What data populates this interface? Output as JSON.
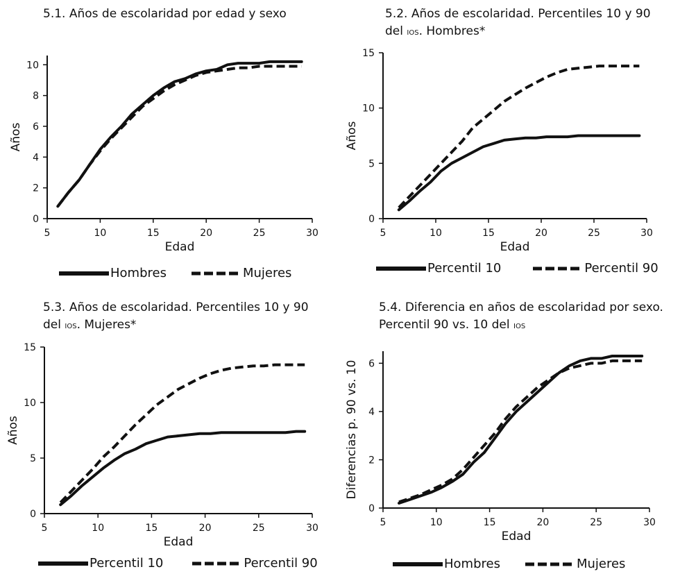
{
  "chart_data": [
    {
      "id": "p1",
      "type": "line",
      "title_main": "5.1. Años de escolaridad por edad y sexo",
      "title_sc": "",
      "title_tail": "",
      "title_line2": "",
      "xlabel": "Edad",
      "ylabel": "Años",
      "xlim": [
        5,
        30
      ],
      "ylim": [
        0,
        10.6
      ],
      "xticks": [
        5,
        10,
        15,
        20,
        25,
        30
      ],
      "yticks": [
        0,
        2,
        4,
        6,
        8,
        10
      ],
      "series": [
        {
          "name": "Hombres",
          "style": "solid",
          "x": [
            6,
            7,
            8,
            9,
            10,
            11,
            12,
            13,
            14,
            15,
            16,
            17,
            18,
            19,
            20,
            21,
            22,
            23,
            24,
            25,
            26,
            27,
            28,
            29
          ],
          "y": [
            0.8,
            1.7,
            2.5,
            3.5,
            4.5,
            5.3,
            6.0,
            6.8,
            7.4,
            8.0,
            8.5,
            8.9,
            9.1,
            9.4,
            9.6,
            9.7,
            10.0,
            10.1,
            10.1,
            10.1,
            10.2,
            10.2,
            10.2,
            10.2
          ]
        },
        {
          "name": "Mujeres",
          "style": "dashed",
          "x": [
            6,
            7,
            8,
            9,
            10,
            11,
            12,
            13,
            14,
            15,
            16,
            17,
            18,
            19,
            20,
            21,
            22,
            23,
            24,
            25,
            26,
            27,
            28,
            29
          ],
          "y": [
            0.8,
            1.7,
            2.5,
            3.5,
            4.4,
            5.2,
            5.9,
            6.6,
            7.3,
            7.8,
            8.3,
            8.7,
            9.0,
            9.3,
            9.5,
            9.6,
            9.7,
            9.8,
            9.8,
            9.9,
            9.9,
            9.9,
            9.9,
            9.9
          ]
        }
      ]
    },
    {
      "id": "p2",
      "type": "line",
      "title_main": "5.2. Años de escolaridad. Percentiles 10 y 90",
      "title_sc": "",
      "title_tail": "",
      "title_line2_pre": "del ",
      "title_line2_sc": "IOS",
      "title_line2_post": ". Hombres*",
      "xlabel": "Edad",
      "ylabel": "Años",
      "xlim": [
        5,
        30
      ],
      "ylim": [
        0,
        15
      ],
      "xticks": [
        5,
        10,
        15,
        20,
        25,
        30
      ],
      "yticks": [
        0,
        5,
        10,
        15
      ],
      "series": [
        {
          "name": "Percentil 10",
          "style": "solid",
          "x": [
            6.5,
            7.5,
            8.5,
            9.5,
            10.5,
            11.5,
            12.5,
            13.5,
            14.5,
            15.5,
            16.5,
            17.5,
            18.5,
            19.5,
            20.5,
            21.5,
            22.5,
            23.5,
            24.5,
            25.5,
            26.5,
            27.5,
            28.5,
            29.3
          ],
          "y": [
            0.8,
            1.6,
            2.5,
            3.3,
            4.3,
            5.0,
            5.5,
            6.0,
            6.5,
            6.8,
            7.1,
            7.2,
            7.3,
            7.3,
            7.4,
            7.4,
            7.4,
            7.5,
            7.5,
            7.5,
            7.5,
            7.5,
            7.5,
            7.5
          ]
        },
        {
          "name": "Percentil 90",
          "style": "dashed",
          "x": [
            6.5,
            7.5,
            8.5,
            9.5,
            10.5,
            11.5,
            12.5,
            13.5,
            14.5,
            15.5,
            16.5,
            17.5,
            18.5,
            19.5,
            20.5,
            21.5,
            22.5,
            23.5,
            24.5,
            25.5,
            26.5,
            27.5,
            28.5,
            29.3
          ],
          "y": [
            1.0,
            2.0,
            3.0,
            4.0,
            5.0,
            6.0,
            7.0,
            8.2,
            9.0,
            9.8,
            10.6,
            11.2,
            11.8,
            12.3,
            12.8,
            13.2,
            13.5,
            13.6,
            13.7,
            13.8,
            13.8,
            13.8,
            13.8,
            13.8
          ]
        }
      ]
    },
    {
      "id": "p3",
      "type": "line",
      "title_main": "5.3. Años de escolaridad. Percentiles 10 y 90",
      "title_sc": "",
      "title_tail": "",
      "title_line2_pre": "del ",
      "title_line2_sc": "IOS",
      "title_line2_post": ". Mujeres*",
      "xlabel": "Edad",
      "ylabel": "Años",
      "xlim": [
        5,
        30
      ],
      "ylim": [
        0,
        15
      ],
      "xticks": [
        5,
        10,
        15,
        20,
        25,
        30
      ],
      "yticks": [
        0,
        5,
        10,
        15
      ],
      "series": [
        {
          "name": "Percentil 10",
          "style": "solid",
          "x": [
            6.5,
            7.5,
            8.5,
            9.5,
            10.5,
            11.5,
            12.5,
            13.5,
            14.5,
            15.5,
            16.5,
            17.5,
            18.5,
            19.5,
            20.5,
            21.5,
            22.5,
            23.5,
            24.5,
            25.5,
            26.5,
            27.5,
            28.5,
            29.3
          ],
          "y": [
            0.8,
            1.6,
            2.5,
            3.3,
            4.1,
            4.8,
            5.4,
            5.8,
            6.3,
            6.6,
            6.9,
            7.0,
            7.1,
            7.2,
            7.2,
            7.3,
            7.3,
            7.3,
            7.3,
            7.3,
            7.3,
            7.3,
            7.4,
            7.4
          ]
        },
        {
          "name": "Percentil 90",
          "style": "dashed",
          "x": [
            6.5,
            7.5,
            8.5,
            9.5,
            10.5,
            11.5,
            12.5,
            13.5,
            14.5,
            15.5,
            16.5,
            17.5,
            18.5,
            19.5,
            20.5,
            21.5,
            22.5,
            23.5,
            24.5,
            25.5,
            26.5,
            27.5,
            28.5,
            29.3
          ],
          "y": [
            1.0,
            2.0,
            3.0,
            4.0,
            5.1,
            6.0,
            7.0,
            8.0,
            8.9,
            9.8,
            10.5,
            11.2,
            11.7,
            12.2,
            12.6,
            12.9,
            13.1,
            13.2,
            13.3,
            13.3,
            13.4,
            13.4,
            13.4,
            13.4
          ]
        }
      ]
    },
    {
      "id": "p4",
      "type": "line",
      "title_main": "5.4. Diferencia en años de escolaridad por sexo.",
      "title_line2_pre": "Percentil 90 vs. 10 del ",
      "title_line2_sc": "IOS",
      "title_line2_post": "",
      "xlabel": "Edad",
      "ylabel": "Diferencias p. 90 vs. 10",
      "xlim": [
        5,
        30
      ],
      "ylim": [
        0,
        6.5
      ],
      "xticks": [
        5,
        10,
        15,
        20,
        25,
        30
      ],
      "yticks": [
        0,
        2,
        4,
        6
      ],
      "series": [
        {
          "name": "Hombres",
          "style": "solid",
          "x": [
            6.5,
            7.5,
            8.5,
            9.5,
            10.5,
            11.5,
            12.5,
            13.5,
            14.5,
            15.5,
            16.5,
            17.5,
            18.5,
            19.5,
            20.5,
            21.5,
            22.5,
            23.5,
            24.5,
            25.5,
            26.5,
            27.5,
            28.5,
            29.3
          ],
          "y": [
            0.2,
            0.35,
            0.5,
            0.65,
            0.85,
            1.1,
            1.4,
            1.9,
            2.3,
            2.9,
            3.5,
            4.0,
            4.4,
            4.8,
            5.2,
            5.6,
            5.9,
            6.1,
            6.2,
            6.2,
            6.3,
            6.3,
            6.3,
            6.3
          ]
        },
        {
          "name": "Mujeres",
          "style": "dashed",
          "x": [
            6.5,
            7.5,
            8.5,
            9.5,
            10.5,
            11.5,
            12.5,
            13.5,
            14.5,
            15.5,
            16.5,
            17.5,
            18.5,
            19.5,
            20.5,
            21.5,
            22.5,
            23.5,
            24.5,
            25.5,
            26.5,
            27.5,
            28.5,
            29.3
          ],
          "y": [
            0.25,
            0.4,
            0.55,
            0.75,
            0.95,
            1.2,
            1.6,
            2.1,
            2.6,
            3.1,
            3.7,
            4.2,
            4.6,
            5.0,
            5.3,
            5.6,
            5.8,
            5.9,
            6.0,
            6.0,
            6.1,
            6.1,
            6.1,
            6.1
          ]
        }
      ]
    }
  ]
}
